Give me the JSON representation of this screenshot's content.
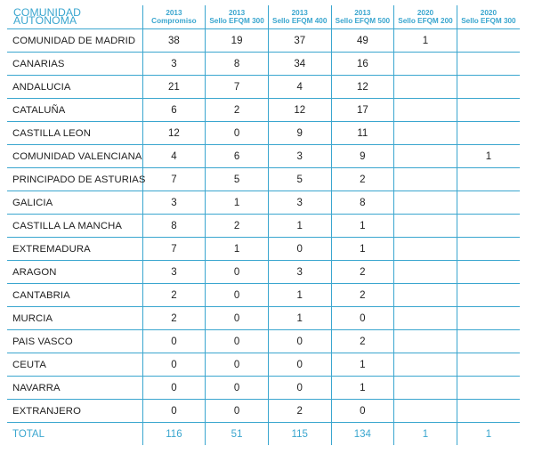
{
  "header": {
    "first": "COMUNIDAD AUTÓNOMA",
    "columns": [
      {
        "year": "2013",
        "label": "Compromiso"
      },
      {
        "year": "2013",
        "label": "Sello EFQM 300"
      },
      {
        "year": "2013",
        "label": "Sello EFQM 400"
      },
      {
        "year": "2013",
        "label": "Sello EFQM 500"
      },
      {
        "year": "2020",
        "label": "Sello EFQM 200"
      },
      {
        "year": "2020",
        "label": "Sello EFQM 300"
      }
    ]
  },
  "rows": [
    {
      "name": "COMUNIDAD DE MADRID",
      "values": [
        "38",
        "19",
        "37",
        "49",
        "1",
        ""
      ]
    },
    {
      "name": "CANARIAS",
      "values": [
        "3",
        "8",
        "34",
        "16",
        "",
        ""
      ]
    },
    {
      "name": "ANDALUCIA",
      "values": [
        "21",
        "7",
        "4",
        "12",
        "",
        ""
      ]
    },
    {
      "name": "CATALUÑA",
      "values": [
        "6",
        "2",
        "12",
        "17",
        "",
        ""
      ]
    },
    {
      "name": "CASTILLA LEON",
      "values": [
        "12",
        "0",
        "9",
        "11",
        "",
        ""
      ]
    },
    {
      "name": "COMUNIDAD VALENCIANA",
      "values": [
        "4",
        "6",
        "3",
        "9",
        "",
        "1"
      ]
    },
    {
      "name": "PRINCIPADO DE ASTURIAS",
      "values": [
        "7",
        "5",
        "5",
        "2",
        "",
        ""
      ]
    },
    {
      "name": "GALICIA",
      "values": [
        "3",
        "1",
        "3",
        "8",
        "",
        ""
      ]
    },
    {
      "name": "CASTILLA LA MANCHA",
      "values": [
        "8",
        "2",
        "1",
        "1",
        "",
        ""
      ]
    },
    {
      "name": "EXTREMADURA",
      "values": [
        "7",
        "1",
        "0",
        "1",
        "",
        ""
      ]
    },
    {
      "name": "ARAGON",
      "values": [
        "3",
        "0",
        "3",
        "2",
        "",
        ""
      ]
    },
    {
      "name": "CANTABRIA",
      "values": [
        "2",
        "0",
        "1",
        "2",
        "",
        ""
      ]
    },
    {
      "name": "MURCIA",
      "values": [
        "2",
        "0",
        "1",
        "0",
        "",
        ""
      ]
    },
    {
      "name": "PAIS VASCO",
      "values": [
        "0",
        "0",
        "0",
        "2",
        "",
        ""
      ]
    },
    {
      "name": "CEUTA",
      "values": [
        "0",
        "0",
        "0",
        "1",
        "",
        ""
      ]
    },
    {
      "name": "NAVARRA",
      "values": [
        "0",
        "0",
        "0",
        "1",
        "",
        ""
      ]
    },
    {
      "name": "EXTRANJERO",
      "values": [
        "0",
        "0",
        "2",
        "0",
        "",
        ""
      ]
    }
  ],
  "total": {
    "name": "TOTAL",
    "values": [
      "116",
      "51",
      "115",
      "134",
      "1",
      "1"
    ]
  },
  "colors": {
    "accent": "#3aa6cf",
    "text": "#1e1e1e"
  }
}
